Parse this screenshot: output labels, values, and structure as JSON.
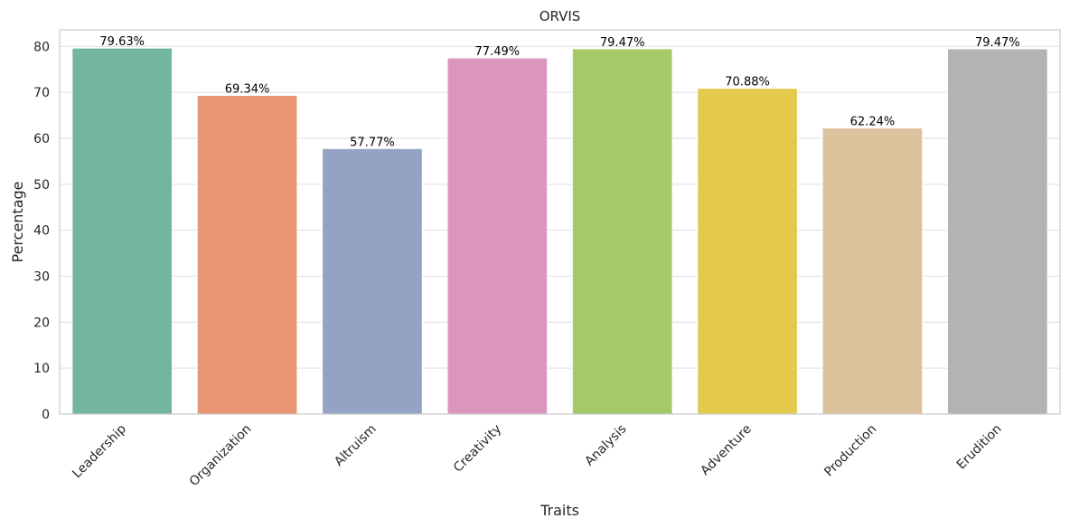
{
  "chart_data": {
    "type": "bar",
    "title": "ORVIS",
    "xlabel": "Traits",
    "ylabel": "Percentage",
    "ylim": [
      0,
      83.6
    ],
    "yticks": [
      0,
      10,
      20,
      30,
      40,
      50,
      60,
      70,
      80
    ],
    "grid": "horizontal",
    "categories": [
      "Leadership",
      "Organization",
      "Altruism",
      "Creativity",
      "Analysis",
      "Adventure",
      "Production",
      "Erudition"
    ],
    "values": [
      79.63,
      69.34,
      57.77,
      77.49,
      79.47,
      70.88,
      62.24,
      79.47
    ],
    "data_labels": [
      "79.63%",
      "69.34%",
      "57.77%",
      "77.49%",
      "79.47%",
      "70.88%",
      "62.24%",
      "79.47%"
    ],
    "colors": [
      "#72b5a1",
      "#e99675",
      "#94a3c3",
      "#db96c0",
      "#a4c966",
      "#e4ca4b",
      "#dcc29c",
      "#b3b3b3"
    ]
  }
}
